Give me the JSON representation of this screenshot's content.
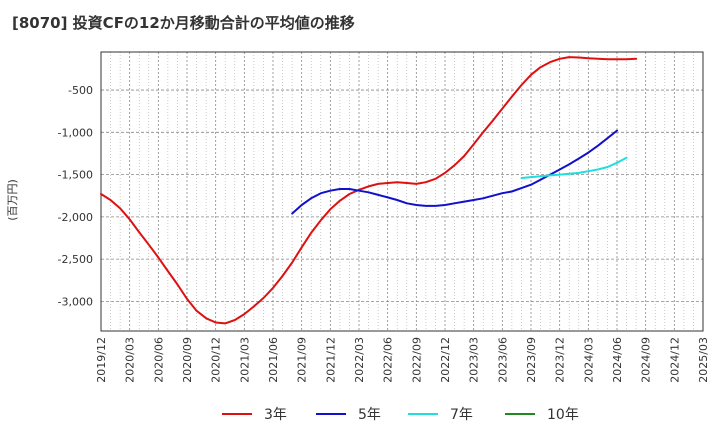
{
  "chart_data": {
    "type": "line",
    "title": "[8070]  投資CFの12か月移動合計の平均値の推移",
    "xlabel": "",
    "ylabel": "(百万円)",
    "ylim": [
      -3350,
      -50
    ],
    "yticks": [
      -500,
      -1000,
      -1500,
      -2000,
      -2500,
      -3000
    ],
    "ytick_labels": [
      "-500",
      "-1,000",
      "-1,500",
      "-2,000",
      "-2,500",
      "-3,000"
    ],
    "xtick_labels": [
      "2019/12",
      "2020/03",
      "2020/06",
      "2020/09",
      "2020/12",
      "2021/03",
      "2021/06",
      "2021/09",
      "2021/12",
      "2022/03",
      "2022/06",
      "2022/09",
      "2022/12",
      "2023/03",
      "2023/06",
      "2023/09",
      "2023/12",
      "2024/03",
      "2024/06",
      "2024/09",
      "2024/12",
      "2025/03"
    ],
    "x_index_range": [
      0,
      21
    ],
    "grid": true,
    "legend_position": "bottom",
    "series": [
      {
        "name": "3年",
        "color": "#dd1111",
        "points": [
          [
            0,
            -1730
          ],
          [
            0.33,
            -1800
          ],
          [
            0.67,
            -1900
          ],
          [
            1,
            -2030
          ],
          [
            1.33,
            -2180
          ],
          [
            1.67,
            -2330
          ],
          [
            2,
            -2480
          ],
          [
            2.33,
            -2640
          ],
          [
            2.67,
            -2800
          ],
          [
            3,
            -2970
          ],
          [
            3.33,
            -3110
          ],
          [
            3.67,
            -3200
          ],
          [
            4,
            -3250
          ],
          [
            4.33,
            -3260
          ],
          [
            4.67,
            -3220
          ],
          [
            5,
            -3150
          ],
          [
            5.33,
            -3060
          ],
          [
            5.67,
            -2960
          ],
          [
            6,
            -2840
          ],
          [
            6.33,
            -2700
          ],
          [
            6.67,
            -2540
          ],
          [
            7,
            -2360
          ],
          [
            7.33,
            -2190
          ],
          [
            7.67,
            -2040
          ],
          [
            8,
            -1910
          ],
          [
            8.33,
            -1810
          ],
          [
            8.67,
            -1730
          ],
          [
            9,
            -1680
          ],
          [
            9.33,
            -1640
          ],
          [
            9.67,
            -1610
          ],
          [
            10,
            -1600
          ],
          [
            10.33,
            -1590
          ],
          [
            10.67,
            -1600
          ],
          [
            11,
            -1610
          ],
          [
            11.33,
            -1590
          ],
          [
            11.67,
            -1550
          ],
          [
            12,
            -1480
          ],
          [
            12.33,
            -1390
          ],
          [
            12.67,
            -1280
          ],
          [
            13,
            -1140
          ],
          [
            13.33,
            -1000
          ],
          [
            13.67,
            -860
          ],
          [
            14,
            -720
          ],
          [
            14.33,
            -580
          ],
          [
            14.67,
            -440
          ],
          [
            15,
            -320
          ],
          [
            15.33,
            -230
          ],
          [
            15.67,
            -170
          ],
          [
            16,
            -130
          ],
          [
            16.33,
            -110
          ],
          [
            16.67,
            -115
          ],
          [
            17,
            -125
          ],
          [
            17.33,
            -130
          ],
          [
            17.67,
            -135
          ],
          [
            18,
            -135
          ],
          [
            18.33,
            -135
          ],
          [
            18.67,
            -130
          ]
        ]
      },
      {
        "name": "5年",
        "color": "#1111cc",
        "points": [
          [
            6.67,
            -1960
          ],
          [
            7,
            -1860
          ],
          [
            7.33,
            -1780
          ],
          [
            7.67,
            -1720
          ],
          [
            8,
            -1690
          ],
          [
            8.33,
            -1670
          ],
          [
            8.67,
            -1670
          ],
          [
            9,
            -1690
          ],
          [
            9.33,
            -1710
          ],
          [
            9.67,
            -1740
          ],
          [
            10,
            -1770
          ],
          [
            10.33,
            -1800
          ],
          [
            10.67,
            -1840
          ],
          [
            11,
            -1860
          ],
          [
            11.33,
            -1870
          ],
          [
            11.67,
            -1870
          ],
          [
            12,
            -1860
          ],
          [
            12.33,
            -1840
          ],
          [
            12.67,
            -1820
          ],
          [
            13,
            -1800
          ],
          [
            13.33,
            -1780
          ],
          [
            13.67,
            -1750
          ],
          [
            14,
            -1720
          ],
          [
            14.33,
            -1700
          ],
          [
            14.67,
            -1660
          ],
          [
            15,
            -1620
          ],
          [
            15.33,
            -1560
          ],
          [
            15.67,
            -1500
          ],
          [
            16,
            -1440
          ],
          [
            16.33,
            -1380
          ],
          [
            16.67,
            -1310
          ],
          [
            17,
            -1240
          ],
          [
            17.33,
            -1160
          ],
          [
            17.67,
            -1070
          ],
          [
            18,
            -980
          ]
        ]
      },
      {
        "name": "7年",
        "color": "#22dddd",
        "points": [
          [
            14.67,
            -1540
          ],
          [
            15,
            -1530
          ],
          [
            15.33,
            -1520
          ],
          [
            15.67,
            -1510
          ],
          [
            16,
            -1500
          ],
          [
            16.33,
            -1490
          ],
          [
            16.67,
            -1480
          ],
          [
            17,
            -1460
          ],
          [
            17.33,
            -1440
          ],
          [
            17.67,
            -1410
          ],
          [
            18,
            -1360
          ],
          [
            18.33,
            -1300
          ]
        ]
      },
      {
        "name": "10年",
        "color": "#228822",
        "points": []
      }
    ]
  }
}
